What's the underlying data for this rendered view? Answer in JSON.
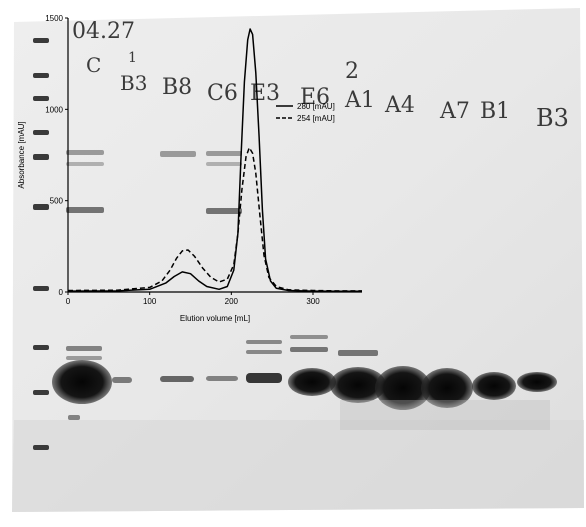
{
  "gel": {
    "lane_labels": [
      "C",
      "B3",
      "B8",
      "C6",
      "E3",
      "E6",
      "A1",
      "A4",
      "A7",
      "B1",
      "B3"
    ],
    "top_annotation": "04.27",
    "small_marks": [
      "1",
      "2"
    ]
  },
  "chart_data": {
    "type": "line",
    "xlabel": "Elution volume [mL]",
    "ylabel": "Absorbance [mAU]",
    "xlim": [
      0,
      360
    ],
    "ylim": [
      0,
      1500
    ],
    "xticks": [
      0,
      100,
      200,
      300
    ],
    "yticks": [
      0,
      500,
      1000,
      1500
    ],
    "grid": false,
    "legend_position": "top-right",
    "series": [
      {
        "name": "280 [mAU]",
        "style": "solid",
        "color": "#000000",
        "points": [
          [
            0,
            5
          ],
          [
            60,
            6
          ],
          [
            100,
            15
          ],
          [
            120,
            50
          ],
          [
            130,
            85
          ],
          [
            140,
            110
          ],
          [
            150,
            100
          ],
          [
            160,
            60
          ],
          [
            170,
            30
          ],
          [
            185,
            15
          ],
          [
            195,
            30
          ],
          [
            203,
            120
          ],
          [
            208,
            320
          ],
          [
            212,
            750
          ],
          [
            216,
            1150
          ],
          [
            220,
            1380
          ],
          [
            223,
            1440
          ],
          [
            226,
            1410
          ],
          [
            230,
            1200
          ],
          [
            234,
            850
          ],
          [
            238,
            450
          ],
          [
            242,
            180
          ],
          [
            248,
            60
          ],
          [
            255,
            20
          ],
          [
            270,
            8
          ],
          [
            300,
            5
          ],
          [
            330,
            4
          ],
          [
            360,
            4
          ]
        ]
      },
      {
        "name": "254 [mAU]",
        "style": "dashed",
        "color": "#000000",
        "points": [
          [
            0,
            8
          ],
          [
            60,
            10
          ],
          [
            100,
            25
          ],
          [
            115,
            60
          ],
          [
            125,
            120
          ],
          [
            133,
            185
          ],
          [
            140,
            225
          ],
          [
            147,
            230
          ],
          [
            155,
            195
          ],
          [
            165,
            130
          ],
          [
            175,
            80
          ],
          [
            185,
            55
          ],
          [
            195,
            70
          ],
          [
            203,
            150
          ],
          [
            208,
            320
          ],
          [
            213,
            560
          ],
          [
            218,
            740
          ],
          [
            222,
            790
          ],
          [
            226,
            760
          ],
          [
            230,
            650
          ],
          [
            235,
            420
          ],
          [
            240,
            200
          ],
          [
            246,
            80
          ],
          [
            255,
            30
          ],
          [
            270,
            12
          ],
          [
            300,
            8
          ],
          [
            330,
            6
          ],
          [
            360,
            6
          ]
        ]
      }
    ]
  }
}
